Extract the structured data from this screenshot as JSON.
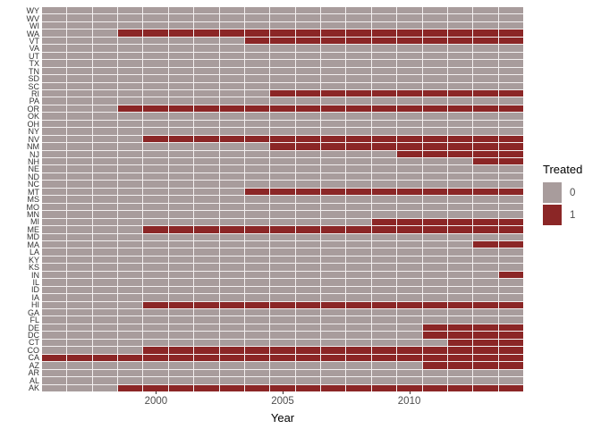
{
  "chart_data": {
    "type": "heatmap",
    "title": "",
    "xlabel": "Year",
    "ylabel": "",
    "x_axis": {
      "min": 1996,
      "max": 2014,
      "ticks": [
        2000,
        2005,
        2010
      ]
    },
    "legend": {
      "title": "Treated",
      "position": "right",
      "entries": [
        {
          "label": "0",
          "color": "#a89c9c"
        },
        {
          "label": "1",
          "color": "#8b2626"
        }
      ]
    },
    "colors": {
      "untreated": "#a89c9c",
      "treated": "#8b2626",
      "gridline": "#f3efef"
    },
    "note": "Each row is a state (top to bottom), each column a year 1996-2014. treated_from = first year cell is 1 (treated through 2014); null = 0 for all years.",
    "rows": [
      {
        "state": "WY",
        "treated_from": null
      },
      {
        "state": "WV",
        "treated_from": null
      },
      {
        "state": "WI",
        "treated_from": null
      },
      {
        "state": "WA",
        "treated_from": 1999
      },
      {
        "state": "VT",
        "treated_from": 2004
      },
      {
        "state": "VA",
        "treated_from": null
      },
      {
        "state": "UT",
        "treated_from": null
      },
      {
        "state": "TX",
        "treated_from": null
      },
      {
        "state": "TN",
        "treated_from": null
      },
      {
        "state": "SD",
        "treated_from": null
      },
      {
        "state": "SC",
        "treated_from": null
      },
      {
        "state": "RI",
        "treated_from": 2005
      },
      {
        "state": "PA",
        "treated_from": null
      },
      {
        "state": "OR",
        "treated_from": 1999
      },
      {
        "state": "OK",
        "treated_from": null
      },
      {
        "state": "OH",
        "treated_from": null
      },
      {
        "state": "NY",
        "treated_from": null
      },
      {
        "state": "NV",
        "treated_from": 2000
      },
      {
        "state": "NM",
        "treated_from": 2005
      },
      {
        "state": "NJ",
        "treated_from": 2010
      },
      {
        "state": "NH",
        "treated_from": 2013
      },
      {
        "state": "NE",
        "treated_from": null
      },
      {
        "state": "ND",
        "treated_from": null
      },
      {
        "state": "NC",
        "treated_from": null
      },
      {
        "state": "MT",
        "treated_from": 2004
      },
      {
        "state": "MS",
        "treated_from": null
      },
      {
        "state": "MO",
        "treated_from": null
      },
      {
        "state": "MN",
        "treated_from": null
      },
      {
        "state": "MI",
        "treated_from": 2009
      },
      {
        "state": "ME",
        "treated_from": 2000
      },
      {
        "state": "MD",
        "treated_from": null
      },
      {
        "state": "MA",
        "treated_from": 2013
      },
      {
        "state": "LA",
        "treated_from": null
      },
      {
        "state": "KY",
        "treated_from": null
      },
      {
        "state": "KS",
        "treated_from": null
      },
      {
        "state": "IN",
        "treated_from": 2014
      },
      {
        "state": "IL",
        "treated_from": null
      },
      {
        "state": "ID",
        "treated_from": null
      },
      {
        "state": "IA",
        "treated_from": null
      },
      {
        "state": "HI",
        "treated_from": 2000
      },
      {
        "state": "GA",
        "treated_from": null
      },
      {
        "state": "FL",
        "treated_from": null
      },
      {
        "state": "DE",
        "treated_from": 2011
      },
      {
        "state": "DC",
        "treated_from": 2011
      },
      {
        "state": "CT",
        "treated_from": 2012
      },
      {
        "state": "CO",
        "treated_from": 2000
      },
      {
        "state": "CA",
        "treated_from": 1996
      },
      {
        "state": "AZ",
        "treated_from": 2011
      },
      {
        "state": "AR",
        "treated_from": null
      },
      {
        "state": "AL",
        "treated_from": null
      },
      {
        "state": "AK",
        "treated_from": 1999
      }
    ]
  }
}
